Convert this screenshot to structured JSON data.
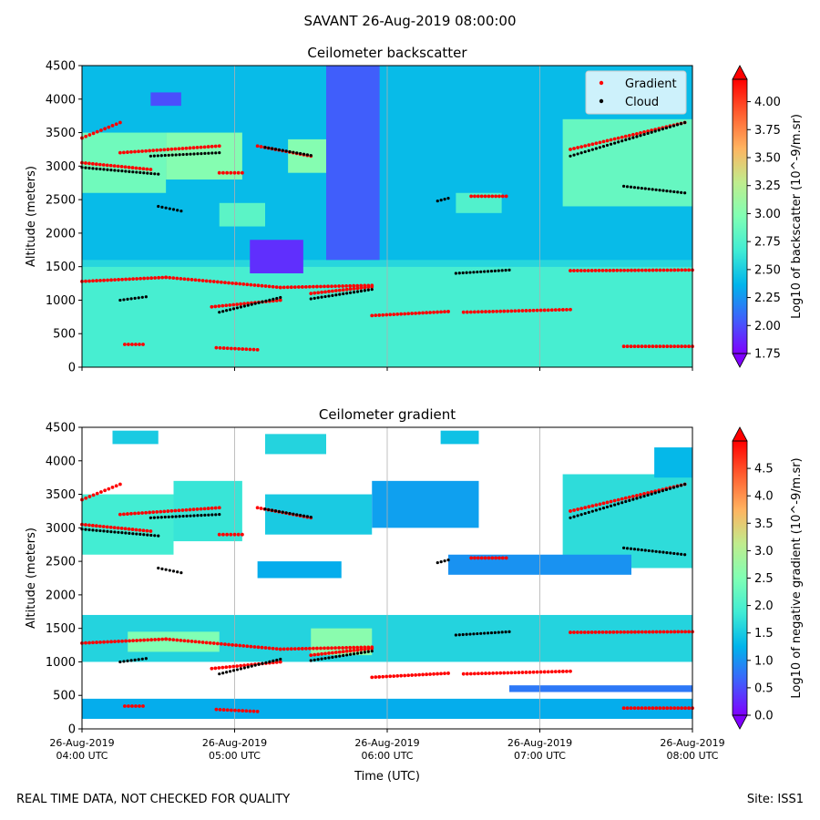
{
  "figure": {
    "suptitle": "SAVANT 26-Aug-2019 08:00:00",
    "footer_left": "REAL TIME DATA, NOT CHECKED FOR QUALITY",
    "footer_right": "Site: ISS1"
  },
  "colors": {
    "gradient_marker": "#ff0000",
    "cloud_marker": "#000000",
    "colormap": [
      "#7f00ff",
      "#3f60fb",
      "#00b4eb",
      "#40ecd4",
      "#80ffb4",
      "#c0ec8d",
      "#ffb360",
      "#ff5f30",
      "#ff0000"
    ]
  },
  "chart_data": [
    {
      "type": "heatmap",
      "title": "Ceilometer backscatter",
      "xlabel": "",
      "ylabel": "Altitude (meters)",
      "ylim": [
        0,
        4500
      ],
      "yticks": [
        0,
        500,
        1000,
        1500,
        2000,
        2500,
        3000,
        3500,
        4000,
        4500
      ],
      "xticks": [
        "26-Aug-2019\n04:00 UTC",
        "26-Aug-2019\n05:00 UTC",
        "26-Aug-2019\n06:00 UTC",
        "26-Aug-2019\n07:00 UTC",
        "26-Aug-2019\n08:00 UTC"
      ],
      "show_xtick_labels": false,
      "grid": "vertical",
      "legend": {
        "position": "top-right",
        "entries": [
          "Gradient",
          "Cloud"
        ]
      },
      "colorbar": {
        "label": "Log10 of backscatter (10^-9/m.sr)",
        "range": [
          1.75,
          4.2
        ],
        "ticks": [
          "1.75",
          "2.00",
          "2.25",
          "2.50",
          "2.75",
          "3.00",
          "3.25",
          "3.50",
          "3.75",
          "4.00"
        ],
        "tick_values": [
          1.75,
          2.0,
          2.25,
          2.5,
          2.75,
          3.0,
          3.25,
          3.5,
          3.75,
          4.0
        ]
      },
      "field": {
        "background": 2.4,
        "layers": [
          {
            "t0": 4.0,
            "t1": 8.0,
            "a0": 0,
            "a1": 1500,
            "value": 2.7
          },
          {
            "t0": 4.0,
            "t1": 8.0,
            "a0": 1500,
            "a1": 1600,
            "value": 2.55
          },
          {
            "t0": 4.0,
            "t1": 4.55,
            "a0": 2600,
            "a1": 3500,
            "value": 2.9
          },
          {
            "t0": 4.55,
            "t1": 5.05,
            "a0": 2800,
            "a1": 3500,
            "value": 3.0
          },
          {
            "t0": 5.35,
            "t1": 5.8,
            "a0": 2900,
            "a1": 3400,
            "value": 3.0
          },
          {
            "t0": 7.15,
            "t1": 8.0,
            "a0": 2400,
            "a1": 3700,
            "value": 2.85
          },
          {
            "t0": 4.9,
            "t1": 5.2,
            "a0": 2100,
            "a1": 2450,
            "value": 2.8
          },
          {
            "t0": 6.45,
            "t1": 6.75,
            "a0": 2300,
            "a1": 2600,
            "value": 2.75
          },
          {
            "t0": 5.1,
            "t1": 5.45,
            "a0": 1400,
            "a1": 1900,
            "value": 1.9
          },
          {
            "t0": 5.6,
            "t1": 5.95,
            "a0": 1600,
            "a1": 4500,
            "value": 2.05
          },
          {
            "t0": 4.45,
            "t1": 4.65,
            "a0": 3900,
            "a1": 4100,
            "value": 2.0
          }
        ]
      },
      "gradient_segments": [
        {
          "t0": 4.0,
          "t1": 4.55,
          "a0": 1280,
          "a1": 1340
        },
        {
          "t0": 4.55,
          "t1": 5.3,
          "a0": 1340,
          "a1": 1190
        },
        {
          "t0": 5.3,
          "t1": 5.9,
          "a0": 1190,
          "a1": 1220
        },
        {
          "t0": 5.9,
          "t1": 6.4,
          "a0": 770,
          "a1": 830
        },
        {
          "t0": 6.5,
          "t1": 7.2,
          "a0": 820,
          "a1": 860
        },
        {
          "t0": 4.28,
          "t1": 4.4,
          "a0": 340,
          "a1": 340
        },
        {
          "t0": 4.88,
          "t1": 5.15,
          "a0": 290,
          "a1": 260
        },
        {
          "t0": 7.55,
          "t1": 8.0,
          "a0": 310,
          "a1": 310
        },
        {
          "t0": 7.2,
          "t1": 8.0,
          "a0": 1440,
          "a1": 1450
        },
        {
          "t0": 4.0,
          "t1": 4.25,
          "a0": 3420,
          "a1": 3650
        },
        {
          "t0": 4.25,
          "t1": 4.9,
          "a0": 3200,
          "a1": 3300
        },
        {
          "t0": 5.15,
          "t1": 5.5,
          "a0": 3300,
          "a1": 3150
        },
        {
          "t0": 7.2,
          "t1": 7.95,
          "a0": 3250,
          "a1": 3650
        },
        {
          "t0": 6.55,
          "t1": 6.78,
          "a0": 2550,
          "a1": 2550
        },
        {
          "t0": 4.0,
          "t1": 4.45,
          "a0": 3050,
          "a1": 2950
        },
        {
          "t0": 4.9,
          "t1": 5.05,
          "a0": 2900,
          "a1": 2900
        },
        {
          "t0": 5.5,
          "t1": 5.9,
          "a0": 1100,
          "a1": 1200
        },
        {
          "t0": 4.85,
          "t1": 5.3,
          "a0": 900,
          "a1": 1000
        }
      ],
      "cloud_segments": [
        {
          "t0": 4.0,
          "t1": 4.5,
          "a0": 2980,
          "a1": 2880
        },
        {
          "t0": 4.45,
          "t1": 4.9,
          "a0": 3150,
          "a1": 3200
        },
        {
          "t0": 5.2,
          "t1": 5.5,
          "a0": 3280,
          "a1": 3160
        },
        {
          "t0": 4.25,
          "t1": 4.42,
          "a0": 1000,
          "a1": 1050
        },
        {
          "t0": 4.9,
          "t1": 5.3,
          "a0": 820,
          "a1": 1040
        },
        {
          "t0": 5.5,
          "t1": 5.9,
          "a0": 1020,
          "a1": 1160
        },
        {
          "t0": 6.45,
          "t1": 6.8,
          "a0": 1400,
          "a1": 1450
        },
        {
          "t0": 7.2,
          "t1": 7.95,
          "a0": 3150,
          "a1": 3650
        },
        {
          "t0": 7.55,
          "t1": 7.95,
          "a0": 2700,
          "a1": 2600
        },
        {
          "t0": 4.5,
          "t1": 4.65,
          "a0": 2400,
          "a1": 2330
        },
        {
          "t0": 6.33,
          "t1": 6.4,
          "a0": 2480,
          "a1": 2520
        }
      ]
    },
    {
      "type": "heatmap",
      "title": "Ceilometer gradient",
      "xlabel": "Time (UTC)",
      "ylabel": "Altitude (meters)",
      "ylim": [
        0,
        4500
      ],
      "yticks": [
        0,
        500,
        1000,
        1500,
        2000,
        2500,
        3000,
        3500,
        4000,
        4500
      ],
      "xticks": [
        "26-Aug-2019\n04:00 UTC",
        "26-Aug-2019\n05:00 UTC",
        "26-Aug-2019\n06:00 UTC",
        "26-Aug-2019\n07:00 UTC",
        "26-Aug-2019\n08:00 UTC"
      ],
      "show_xtick_labels": true,
      "grid": "vertical",
      "colorbar": {
        "label": "Log10 of negative gradient (10^-9/m.sr)",
        "range": [
          0.0,
          5.0
        ],
        "ticks": [
          "0.0",
          "0.5",
          "1.0",
          "1.5",
          "2.0",
          "2.5",
          "3.0",
          "3.5",
          "4.0",
          "4.5"
        ],
        "tick_values": [
          0.0,
          0.5,
          1.0,
          1.5,
          2.0,
          2.5,
          3.0,
          3.5,
          4.0,
          4.5
        ]
      },
      "field": {
        "background": null,
        "layers": [
          {
            "t0": 4.0,
            "t1": 8.0,
            "a0": 1000,
            "a1": 1700,
            "value": 1.6
          },
          {
            "t0": 4.0,
            "t1": 8.0,
            "a0": 150,
            "a1": 450,
            "value": 1.2
          },
          {
            "t0": 6.8,
            "t1": 8.0,
            "a0": 550,
            "a1": 650,
            "value": 0.8
          },
          {
            "t0": 4.0,
            "t1": 4.6,
            "a0": 2600,
            "a1": 3500,
            "value": 1.9
          },
          {
            "t0": 4.6,
            "t1": 5.05,
            "a0": 2800,
            "a1": 3700,
            "value": 1.8
          },
          {
            "t0": 5.2,
            "t1": 5.9,
            "a0": 2900,
            "a1": 3500,
            "value": 1.5
          },
          {
            "t0": 7.15,
            "t1": 8.0,
            "a0": 2400,
            "a1": 3800,
            "value": 1.7
          },
          {
            "t0": 6.4,
            "t1": 7.6,
            "a0": 2300,
            "a1": 2600,
            "value": 1.0
          },
          {
            "t0": 5.15,
            "t1": 5.7,
            "a0": 2250,
            "a1": 2500,
            "value": 1.2
          },
          {
            "t0": 5.9,
            "t1": 6.6,
            "a0": 3000,
            "a1": 3700,
            "value": 1.1
          },
          {
            "t0": 4.2,
            "t1": 4.5,
            "a0": 4250,
            "a1": 4450,
            "value": 1.5
          },
          {
            "t0": 5.2,
            "t1": 5.6,
            "a0": 4100,
            "a1": 4400,
            "value": 1.6
          },
          {
            "t0": 6.35,
            "t1": 6.6,
            "a0": 4250,
            "a1": 4450,
            "value": 1.4
          },
          {
            "t0": 7.75,
            "t1": 8.0,
            "a0": 3750,
            "a1": 4200,
            "value": 1.3
          },
          {
            "t0": 4.3,
            "t1": 4.9,
            "a0": 1150,
            "a1": 1450,
            "value": 2.5
          },
          {
            "t0": 5.5,
            "t1": 5.9,
            "a0": 1100,
            "a1": 1500,
            "value": 2.6
          }
        ]
      },
      "gradient_segments": [
        {
          "t0": 4.0,
          "t1": 4.55,
          "a0": 1280,
          "a1": 1340
        },
        {
          "t0": 4.55,
          "t1": 5.3,
          "a0": 1340,
          "a1": 1190
        },
        {
          "t0": 5.3,
          "t1": 5.9,
          "a0": 1190,
          "a1": 1220
        },
        {
          "t0": 5.9,
          "t1": 6.4,
          "a0": 770,
          "a1": 830
        },
        {
          "t0": 6.5,
          "t1": 7.2,
          "a0": 820,
          "a1": 860
        },
        {
          "t0": 4.28,
          "t1": 4.4,
          "a0": 340,
          "a1": 340
        },
        {
          "t0": 4.88,
          "t1": 5.15,
          "a0": 290,
          "a1": 260
        },
        {
          "t0": 7.55,
          "t1": 8.0,
          "a0": 310,
          "a1": 310
        },
        {
          "t0": 7.2,
          "t1": 8.0,
          "a0": 1440,
          "a1": 1450
        },
        {
          "t0": 4.0,
          "t1": 4.25,
          "a0": 3420,
          "a1": 3650
        },
        {
          "t0": 4.25,
          "t1": 4.9,
          "a0": 3200,
          "a1": 3300
        },
        {
          "t0": 5.15,
          "t1": 5.5,
          "a0": 3300,
          "a1": 3150
        },
        {
          "t0": 7.2,
          "t1": 7.95,
          "a0": 3250,
          "a1": 3650
        },
        {
          "t0": 6.55,
          "t1": 6.78,
          "a0": 2550,
          "a1": 2550
        },
        {
          "t0": 4.0,
          "t1": 4.45,
          "a0": 3050,
          "a1": 2950
        },
        {
          "t0": 4.9,
          "t1": 5.05,
          "a0": 2900,
          "a1": 2900
        },
        {
          "t0": 5.5,
          "t1": 5.9,
          "a0": 1100,
          "a1": 1200
        },
        {
          "t0": 4.85,
          "t1": 5.3,
          "a0": 900,
          "a1": 1000
        }
      ],
      "cloud_segments": [
        {
          "t0": 4.0,
          "t1": 4.5,
          "a0": 2980,
          "a1": 2880
        },
        {
          "t0": 4.45,
          "t1": 4.9,
          "a0": 3150,
          "a1": 3200
        },
        {
          "t0": 5.2,
          "t1": 5.5,
          "a0": 3280,
          "a1": 3160
        },
        {
          "t0": 4.25,
          "t1": 4.42,
          "a0": 1000,
          "a1": 1050
        },
        {
          "t0": 4.9,
          "t1": 5.3,
          "a0": 820,
          "a1": 1040
        },
        {
          "t0": 5.5,
          "t1": 5.9,
          "a0": 1020,
          "a1": 1160
        },
        {
          "t0": 6.45,
          "t1": 6.8,
          "a0": 1400,
          "a1": 1450
        },
        {
          "t0": 7.2,
          "t1": 7.95,
          "a0": 3150,
          "a1": 3650
        },
        {
          "t0": 7.55,
          "t1": 7.95,
          "a0": 2700,
          "a1": 2600
        },
        {
          "t0": 4.5,
          "t1": 4.65,
          "a0": 2400,
          "a1": 2330
        },
        {
          "t0": 6.33,
          "t1": 6.4,
          "a0": 2480,
          "a1": 2520
        }
      ]
    }
  ]
}
